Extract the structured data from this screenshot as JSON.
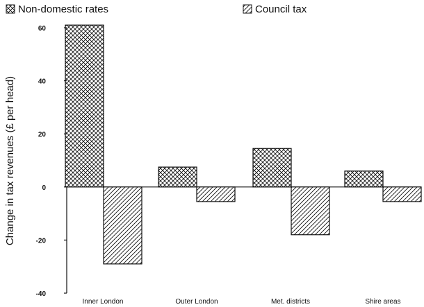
{
  "chart_data": {
    "type": "bar",
    "title": "",
    "xlabel": "",
    "ylabel": "Change in tax revenues (£ per head)",
    "categories": [
      "Inner London",
      "Outer London",
      "Met. districts",
      "Shire areas"
    ],
    "series": [
      {
        "name": "Non-domestic rates",
        "pattern": "crosshatch",
        "values": [
          61,
          7.5,
          14.5,
          6
        ]
      },
      {
        "name": "Council tax",
        "pattern": "diagonal",
        "values": [
          -29,
          -5.5,
          -18,
          -5.5
        ]
      }
    ],
    "yticks": [
      60,
      40,
      20,
      0,
      -20,
      -40
    ],
    "ylim": [
      -40,
      61
    ],
    "grid": false,
    "legend_position": "top"
  }
}
